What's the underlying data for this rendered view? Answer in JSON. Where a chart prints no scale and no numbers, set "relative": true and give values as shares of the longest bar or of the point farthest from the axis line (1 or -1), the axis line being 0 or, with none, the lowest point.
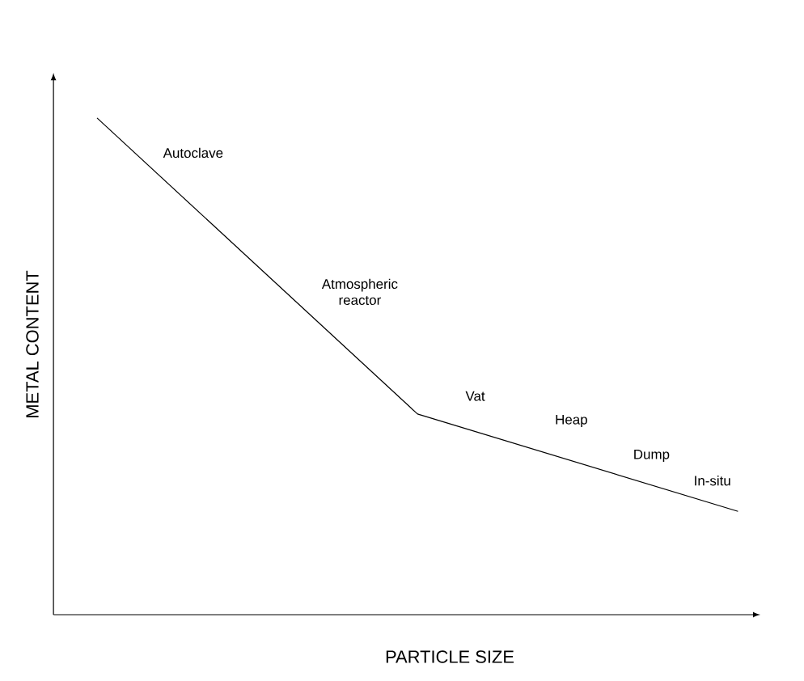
{
  "chart_data": {
    "type": "line",
    "relative": true,
    "xlabel": "PARTICLE SIZE",
    "ylabel": "METAL CONTENT",
    "categories": [
      null,
      null,
      null
    ],
    "series": [
      {
        "color": "#000000",
        "values": [
          1,
          0.404,
          0.208
        ]
      }
    ],
    "annotations": [
      "Autoclave",
      "Atmospheric reactor",
      "Vat",
      "Heap",
      "Dump",
      "In-situ"
    ],
    "marker": "none",
    "line_style": "solid"
  }
}
